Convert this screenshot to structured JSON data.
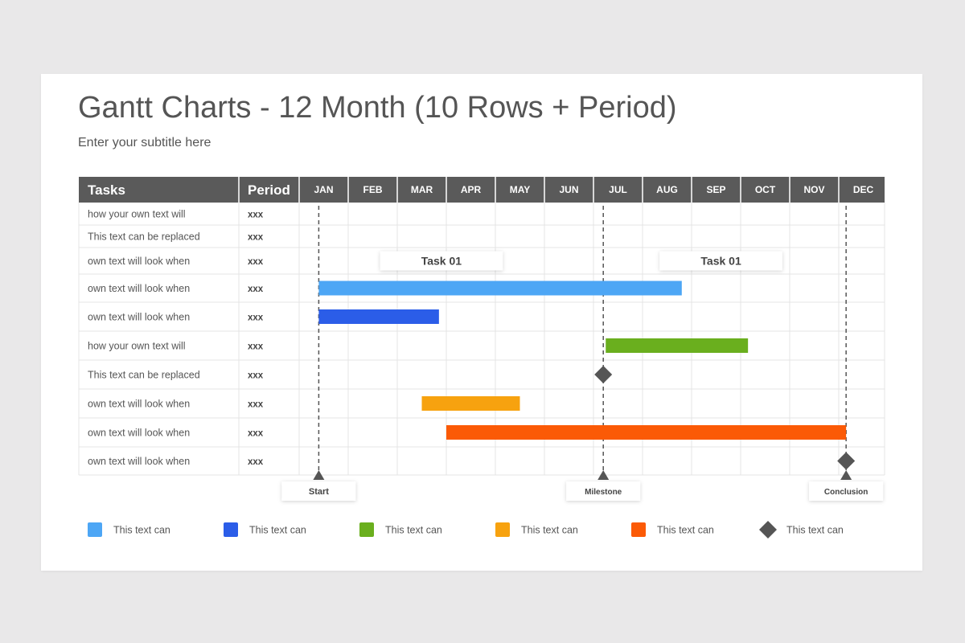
{
  "header": {
    "title": "Gantt Charts - 12 Month (10 Rows + Period)",
    "subtitle": "Enter your subtitle here"
  },
  "table": {
    "tasks_header": "Tasks",
    "period_header": "Period",
    "months": [
      "JAN",
      "FEB",
      "MAR",
      "APR",
      "MAY",
      "JUN",
      "JUL",
      "AUG",
      "SEP",
      "OCT",
      "NOV",
      "DEC"
    ]
  },
  "colors": {
    "header_bg": "#5a5a5a",
    "grid": "#e4e4e4",
    "light_blue": "#4da6f5",
    "blue": "#2b5de8",
    "green": "#6aaf1e",
    "orange": "#f7a20f",
    "red_orange": "#fb5a06",
    "milestone": "#555555"
  },
  "chart_data": {
    "type": "gantt",
    "rows": [
      {
        "task": "how your own text will",
        "period": "xxx"
      },
      {
        "task": "This text can be replaced",
        "period": "xxx"
      },
      {
        "task": "own text will look when",
        "period": "xxx"
      },
      {
        "task": "own text will look when",
        "period": "xxx",
        "bar": {
          "color": "light_blue",
          "start_month": 1.4,
          "end_month": 8.8
        }
      },
      {
        "task": "own text will look when",
        "period": "xxx",
        "bar": {
          "color": "blue",
          "start_month": 1.4,
          "end_month": 3.85
        }
      },
      {
        "task": "how your own text will",
        "period": "xxx",
        "bar": {
          "color": "green",
          "start_month": 7.25,
          "end_month": 10.15
        }
      },
      {
        "task": "This text can be replaced",
        "period": "xxx",
        "milestone": {
          "month": 7.2
        }
      },
      {
        "task": "own text will look when",
        "period": "xxx",
        "bar": {
          "color": "orange",
          "start_month": 3.5,
          "end_month": 5.5
        }
      },
      {
        "task": "own text will look when",
        "period": "xxx",
        "bar": {
          "color": "red_orange",
          "start_month": 4.0,
          "end_month": 12.15
        }
      },
      {
        "task": "own text will look when",
        "period": "xxx",
        "milestone": {
          "month": 12.15
        }
      }
    ],
    "callouts": [
      {
        "label": "Task 01",
        "row": 2,
        "start_month": 2.65,
        "end_month": 5.15
      },
      {
        "label": "Task 01",
        "row": 2,
        "start_month": 8.35,
        "end_month": 10.85
      }
    ],
    "markers": [
      {
        "label": "Start",
        "month": 1.4
      },
      {
        "label": "Milestone",
        "month": 7.2
      },
      {
        "label": "Conclusion",
        "month": 12.15
      }
    ],
    "legend": [
      {
        "label": "This text can",
        "color": "light_blue",
        "shape": "square"
      },
      {
        "label": "This text can",
        "color": "blue",
        "shape": "square"
      },
      {
        "label": "This text can",
        "color": "green",
        "shape": "square"
      },
      {
        "label": "This text can",
        "color": "orange",
        "shape": "square"
      },
      {
        "label": "This text can",
        "color": "red_orange",
        "shape": "square"
      },
      {
        "label": "This text can",
        "color": "milestone",
        "shape": "diamond"
      }
    ]
  }
}
